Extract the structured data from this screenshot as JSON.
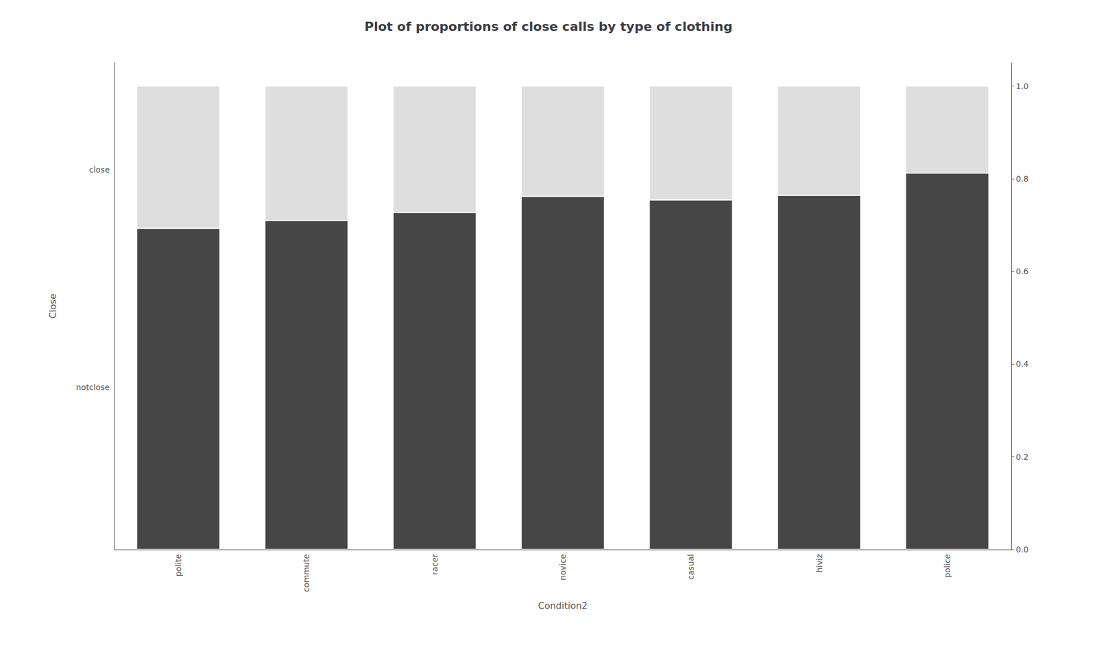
{
  "chart_data": {
    "type": "bar",
    "title": "Plot of proportions of close calls by type of clothing",
    "xlabel": "Condition2",
    "ylabel": "Close",
    "categories": [
      "polite",
      "commute",
      "racer",
      "novice",
      "casual",
      "hiviz",
      "police"
    ],
    "series": [
      {
        "color": "#464646",
        "values": [
          0.693,
          0.71,
          0.727,
          0.762,
          0.754,
          0.764,
          0.812
        ]
      },
      {
        "color": "#dedede",
        "values": [
          0.307,
          0.29,
          0.273,
          0.238,
          0.246,
          0.236,
          0.188
        ]
      }
    ],
    "stacked": true,
    "ylim": [
      0.0,
      1.05
    ],
    "yticks": [
      {
        "value": 0.82,
        "label": "close"
      },
      {
        "value": 0.35,
        "label": "notclose"
      }
    ],
    "y2lim": [
      0.0,
      1.05
    ],
    "y2ticks": [
      {
        "value": 0.0,
        "label": "0.0"
      },
      0.2,
      0.4,
      0.6,
      0.8,
      {
        "value": 1.0,
        "label": "1.0"
      }
    ],
    "grid": false
  }
}
